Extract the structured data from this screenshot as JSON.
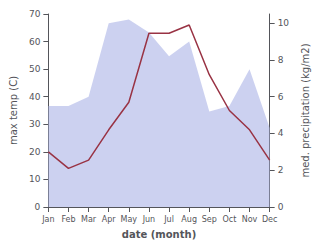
{
  "chart_data": {
    "type": "line",
    "xlabel": "date (month)",
    "ylabel": "max temp (C)",
    "y2label": "med. precipitation (kg/m2)",
    "categories": [
      "Jan",
      "Feb",
      "Mar",
      "Apr",
      "May",
      "Jun",
      "Jul",
      "Aug",
      "Sep",
      "Oct",
      "Nov",
      "Dec"
    ],
    "series": [
      {
        "type": "area",
        "color": "#b0b8e8",
        "axis": "y2",
        "values": [
          5.5,
          5.5,
          6.0,
          10.0,
          10.2,
          9.5,
          8.2,
          9.0,
          5.2,
          5.5,
          7.5,
          4.3
        ]
      },
      {
        "type": "line",
        "color": "#993344",
        "values": [
          20,
          14,
          17,
          28,
          38,
          63,
          63,
          66,
          48,
          35,
          28,
          17
        ]
      }
    ],
    "ylim": [
      0,
      70
    ],
    "yticks": [
      0,
      10,
      20,
      30,
      40,
      50,
      60,
      70
    ],
    "y2lim": [
      0,
      10.5
    ],
    "y2ticks": [
      0,
      2,
      4,
      6,
      8,
      10
    ],
    "grid": false
  }
}
